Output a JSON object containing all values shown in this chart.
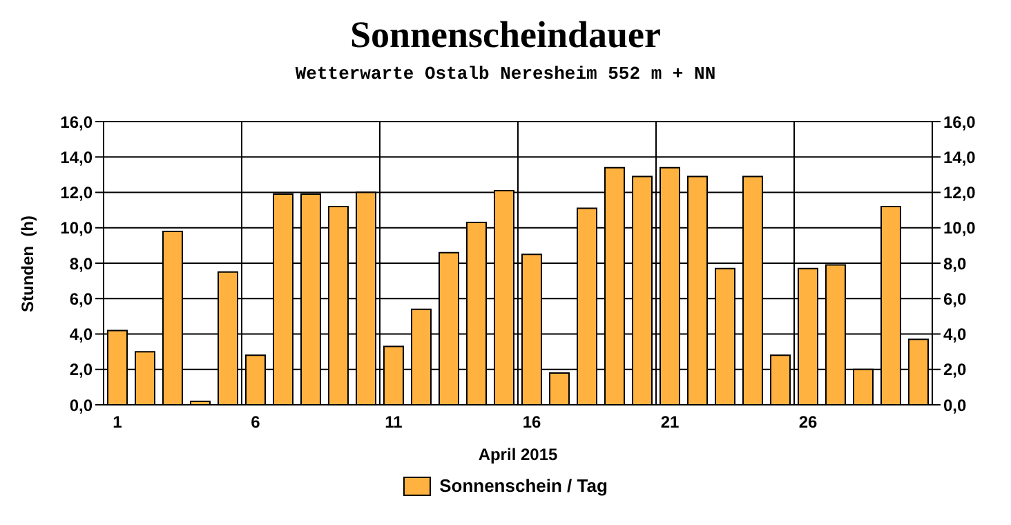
{
  "chart_data": {
    "type": "bar",
    "title": "Sonnenscheindauer",
    "subtitle": "Wetterwarte Ostalb Neresheim 552 m + NN",
    "xlabel": "April 2015",
    "ylabel": "Stunden  (h)",
    "categories": [
      "1",
      null,
      null,
      null,
      null,
      "6",
      null,
      null,
      null,
      null,
      "11",
      null,
      null,
      null,
      null,
      "16",
      null,
      null,
      null,
      null,
      "21",
      null,
      null,
      null,
      null,
      "26",
      null,
      null,
      null,
      null
    ],
    "series": [
      {
        "name": "Sonnenschein / Tag",
        "color": "#ffb23f",
        "values": [
          4.2,
          3.0,
          9.8,
          0.2,
          7.5,
          2.8,
          11.9,
          11.9,
          11.2,
          12.0,
          3.3,
          5.4,
          8.6,
          10.3,
          12.1,
          8.5,
          1.8,
          11.1,
          13.4,
          12.9,
          13.4,
          12.9,
          7.7,
          12.9,
          2.8,
          7.7,
          7.9,
          2.0,
          11.2,
          3.7
        ]
      }
    ],
    "ylim": [
      0,
      16
    ],
    "yticks": [
      {
        "value": 0,
        "label": "0,0"
      },
      {
        "value": 2,
        "label": "2,0"
      },
      {
        "value": 4,
        "label": "4,0"
      },
      {
        "value": 6,
        "label": "6,0"
      },
      {
        "value": 8,
        "label": "8,0"
      },
      {
        "value": 10,
        "label": "10,0"
      },
      {
        "value": 12,
        "label": "12,0"
      },
      {
        "value": 14,
        "label": "14,0"
      },
      {
        "value": 16,
        "label": "16,0"
      }
    ],
    "y2lim": [
      0,
      16
    ],
    "y2ticks": [
      {
        "value": 0,
        "label": "0,0"
      },
      {
        "value": 2,
        "label": "2,0"
      },
      {
        "value": 4,
        "label": "4,0"
      },
      {
        "value": 6,
        "label": "6,0"
      },
      {
        "value": 8,
        "label": "8,0"
      },
      {
        "value": 10,
        "label": "10,0"
      },
      {
        "value": 12,
        "label": "12,0"
      },
      {
        "value": 14,
        "label": "14,0"
      },
      {
        "value": 16,
        "label": "16,0"
      }
    ],
    "grid": true,
    "legend": "bottom"
  }
}
